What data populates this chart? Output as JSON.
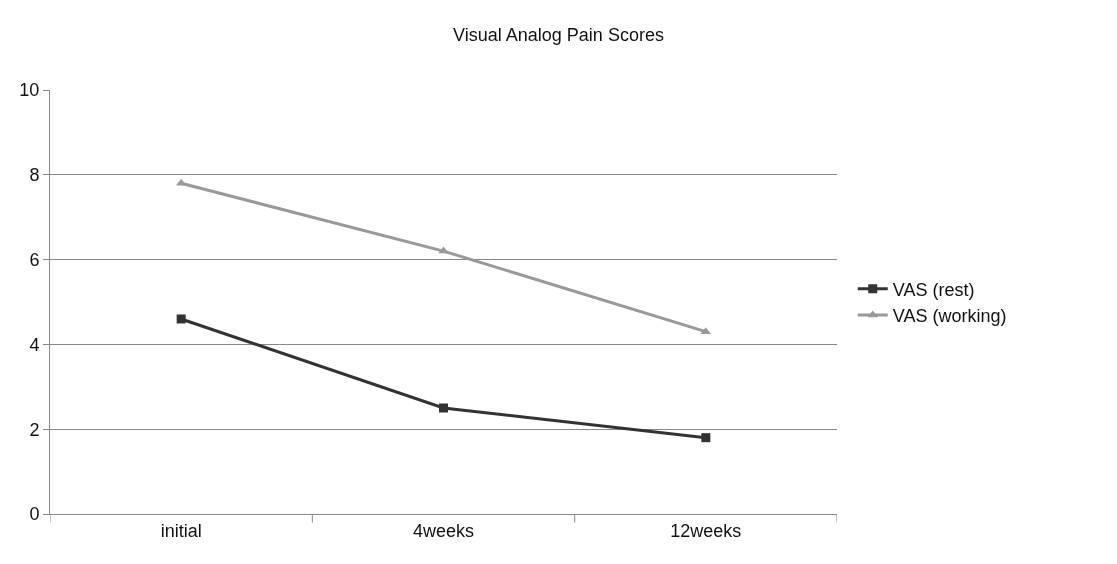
{
  "chart_data": {
    "type": "line",
    "title": "Visual Analog Pain Scores",
    "categories": [
      "initial",
      "4weeks",
      "12weeks"
    ],
    "series": [
      {
        "name": "VAS (rest)",
        "color": "#333333",
        "marker": "square",
        "values": [
          4.6,
          2.5,
          1.8
        ]
      },
      {
        "name": "VAS (working)",
        "color": "#999999",
        "marker": "triangle",
        "values": [
          7.8,
          6.2,
          4.3
        ]
      }
    ],
    "ylim": [
      0,
      10
    ],
    "yticks": [
      0,
      2,
      4,
      6,
      8,
      10
    ],
    "grid": "y",
    "legend": "right"
  }
}
